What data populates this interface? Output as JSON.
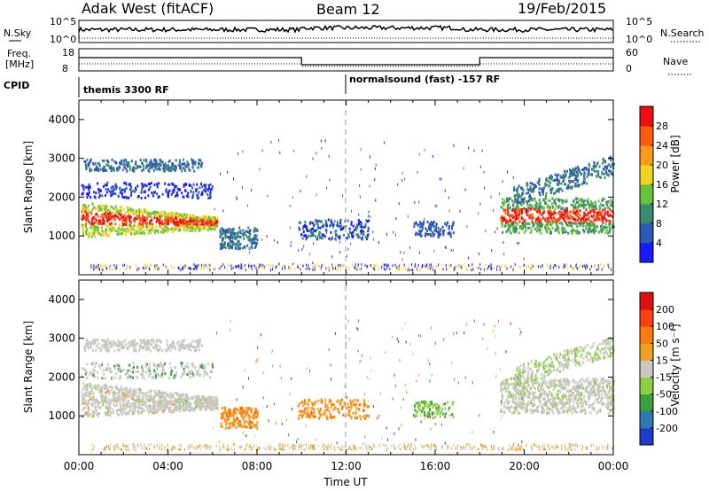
{
  "header": {
    "title": "Adak West (fitACF)",
    "beam": "Beam 12",
    "date": "19/Feb/2015"
  },
  "info_panels": {
    "nsky_label": "N.Sky",
    "nsearch_label": "N.Search",
    "nsky_ticks": [
      "10^5",
      "10^0"
    ],
    "nsearch_ticks": [
      "10^5",
      "10^0"
    ],
    "freq_label_1": "Freq.",
    "freq_label_2": "[MHz]",
    "freq_ticks": [
      "18",
      "8"
    ],
    "nave_label": "Nave",
    "nave_ticks": [
      "60",
      "0"
    ],
    "cpid_label": "CPID",
    "cpid_segments": [
      {
        "text": "themis 3300 RF",
        "start_hour": 0
      },
      {
        "text": "normalsound (fast) -157 RF",
        "start_hour": 12
      }
    ]
  },
  "chart_data": [
    {
      "type": "heatmap",
      "name": "power",
      "xlabel": "Time UT",
      "ylabel": "Slant Range [km]",
      "ylim": [
        0,
        4500
      ],
      "yticks": [
        "1000",
        "2000",
        "3000",
        "4000"
      ],
      "colorbar_label": "Power [dB]",
      "colorbar_ticks": [
        "4",
        "8",
        "12",
        "16",
        "20",
        "24",
        "28"
      ],
      "colors": [
        "#1a1aff",
        "#2e58b8",
        "#3a8a6e",
        "#66c23a",
        "#f0d420",
        "#ff9a1a",
        "#ff5a10",
        "#ee1010"
      ]
    },
    {
      "type": "heatmap",
      "name": "velocity",
      "xlabel": "Time UT",
      "ylabel": "Slant Range [km]",
      "ylim": [
        0,
        4500
      ],
      "yticks": [
        "1000",
        "2000",
        "3000",
        "4000"
      ],
      "colorbar_label": "Velocity [m s⁻¹]",
      "colorbar_ticks": [
        "200",
        "100",
        "50",
        "15",
        "-15",
        "-50",
        "-100",
        "-200"
      ],
      "colors": [
        "#1e3cc8",
        "#2e78b8",
        "#3aa040",
        "#8ad040",
        "#c8c8c0",
        "#f0a020",
        "#ff7a10",
        "#ff4010",
        "#e01010"
      ]
    }
  ],
  "x_axis": {
    "label": "Time UT",
    "ticks": [
      "00:00",
      "04:00",
      "08:00",
      "12:00",
      "16:00",
      "20:00",
      "00:00"
    ]
  }
}
